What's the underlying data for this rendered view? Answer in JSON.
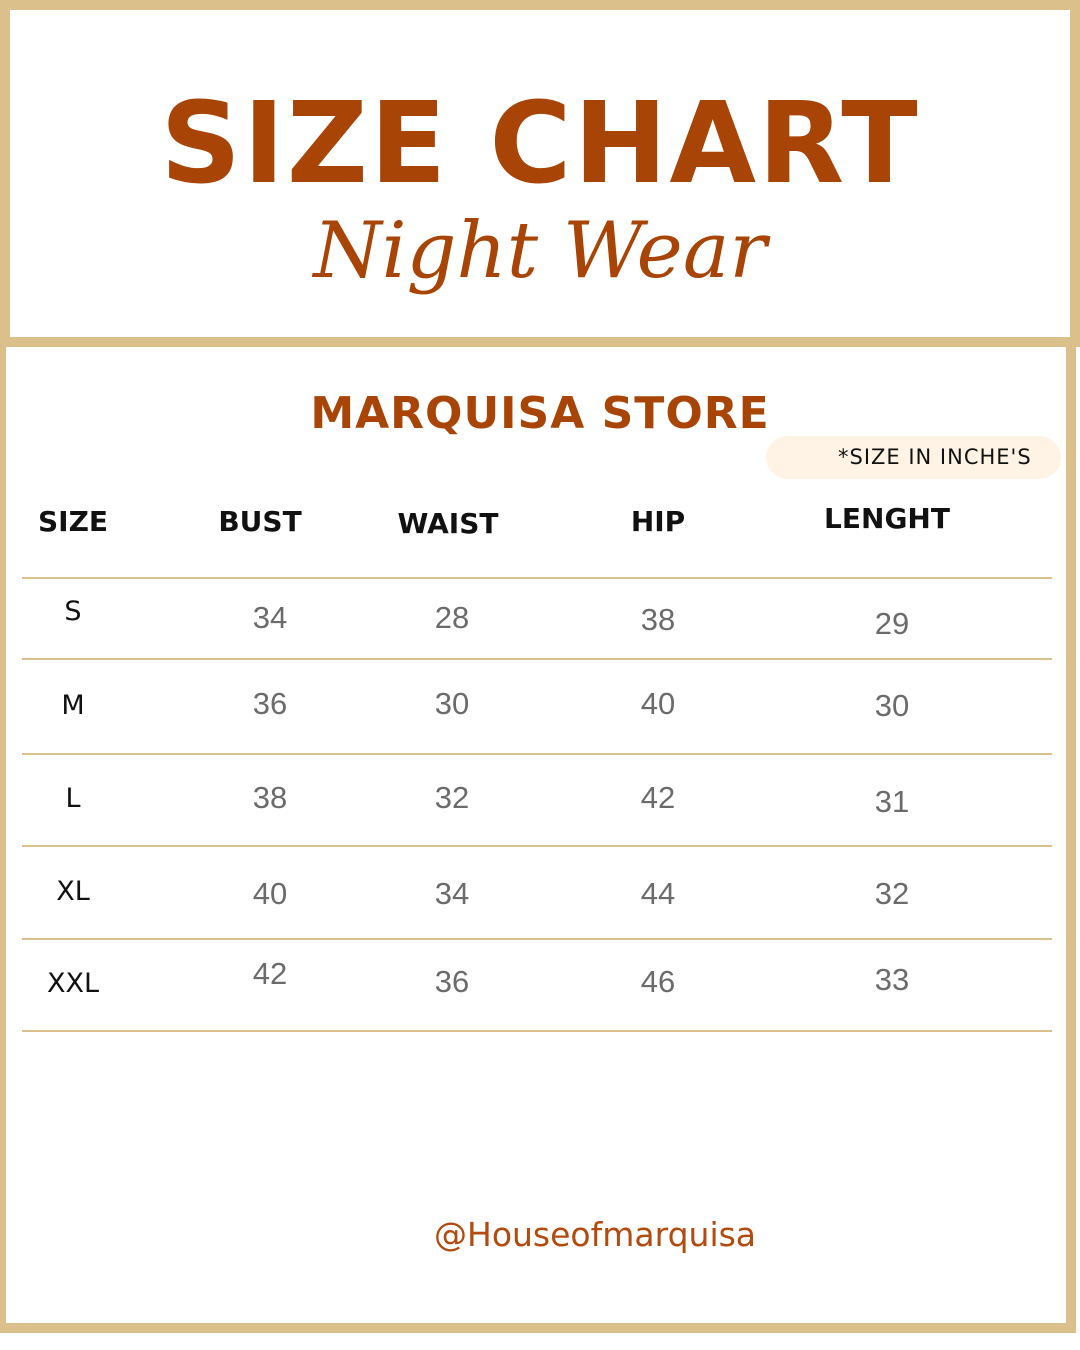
{
  "header": {
    "title": "SIZE CHART",
    "subtitle": "Night Wear"
  },
  "store_name": "MARQUISA STORE",
  "unit_note": "*SIZE IN INCHE'S",
  "table": {
    "columns": [
      "SIZE",
      "BUST",
      "WAIST",
      "HIP",
      "LENGHT"
    ],
    "rows": [
      [
        "S",
        "34",
        "28",
        "38",
        "29"
      ],
      [
        "M",
        "36",
        "30",
        "40",
        "30"
      ],
      [
        "L",
        "38",
        "32",
        "42",
        "31"
      ],
      [
        "XL",
        "40",
        "34",
        "44",
        "32"
      ],
      [
        "XXL",
        "42",
        "36",
        "46",
        "33"
      ]
    ]
  },
  "footer": {
    "handle": "@Houseofmarquisa"
  },
  "colors": {
    "accent": "#a84405",
    "border": "#dcc08b",
    "badge": "#fef3e4"
  }
}
